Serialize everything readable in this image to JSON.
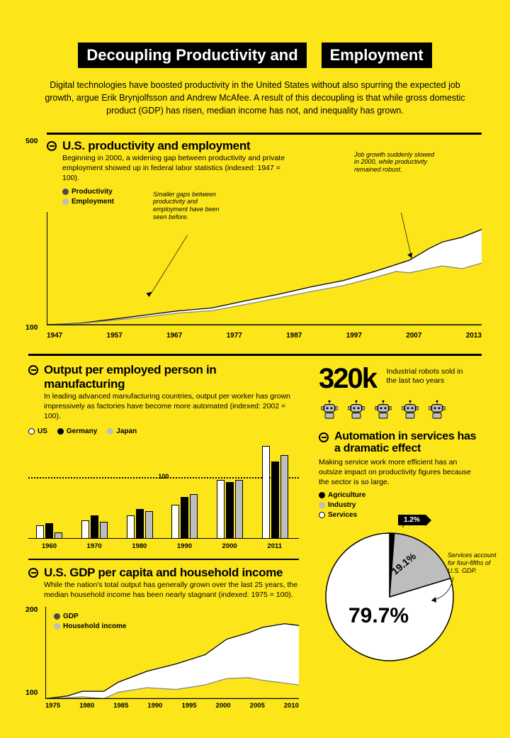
{
  "title_left": "Decoupling Productivity and",
  "title_right": "Employment",
  "intro": "Digital technologies have boosted productivity in the United States without also spurring the expected job growth, argue Erik Brynjolfsson and Andrew McAfee. A result of this decoupling is that while gross domestic product (GDP) has risen, median income has not, and inequality has grown.",
  "colors": {
    "bg": "#fce61a",
    "dark": "#000000",
    "grey": "#bdbdbd",
    "white": "#ffffff",
    "light_grey_fill": "#d9d9d9"
  },
  "chart1": {
    "title": "U.S. productivity and employment",
    "desc": "Beginning in 2000, a widening gap between productivity and private employment showed up in federal labor statistics (indexed: 1947 = 100).",
    "legend": [
      {
        "label": "Productivity",
        "color": "#4a4a4a"
      },
      {
        "label": "Employment",
        "color": "#bdbdbd"
      }
    ],
    "y_max_label": "500",
    "y_min_label": "100",
    "ylim": [
      100,
      500
    ],
    "x_labels": [
      "1947",
      "1957",
      "1967",
      "1977",
      "1987",
      "1997",
      "2007",
      "2013"
    ],
    "annot1": "Smaller gaps between productivity and employment have been seen before.",
    "annot2": "Job growth suddenly slowed in 2000, while productivity remained robust.",
    "prod_points": [
      [
        0,
        100
      ],
      [
        5,
        106
      ],
      [
        10,
        120
      ],
      [
        15,
        135
      ],
      [
        20,
        150
      ],
      [
        25,
        160
      ],
      [
        30,
        185
      ],
      [
        35,
        208
      ],
      [
        40,
        235
      ],
      [
        45,
        258
      ],
      [
        50,
        292
      ],
      [
        55,
        330
      ],
      [
        58,
        372
      ],
      [
        60,
        395
      ],
      [
        63,
        412
      ],
      [
        66,
        440
      ]
    ],
    "emp_points": [
      [
        0,
        100
      ],
      [
        5,
        105
      ],
      [
        10,
        116
      ],
      [
        15,
        128
      ],
      [
        20,
        142
      ],
      [
        25,
        150
      ],
      [
        30,
        172
      ],
      [
        35,
        195
      ],
      [
        40,
        218
      ],
      [
        45,
        240
      ],
      [
        50,
        270
      ],
      [
        53,
        290
      ],
      [
        55,
        285
      ],
      [
        58,
        300
      ],
      [
        60,
        310
      ],
      [
        63,
        300
      ],
      [
        66,
        320
      ]
    ]
  },
  "chart2": {
    "title": "Output per employed person in manufacturing",
    "desc": "In leading advanced manufacturing countries, output per worker has grown impressively as factories have become more automated (indexed: 2002 = 100).",
    "legend": [
      {
        "label": "US",
        "color": "#ffffff",
        "stroke": "#000"
      },
      {
        "label": "Germany",
        "color": "#000000"
      },
      {
        "label": "Japan",
        "color": "#bdbdbd"
      }
    ],
    "ref_line_value": 100,
    "ref_line_label": "100",
    "ymax": 160,
    "years": [
      "1960",
      "1970",
      "1980",
      "1990",
      "2000",
      "2011"
    ],
    "data": {
      "US": [
        22,
        30,
        38,
        55,
        95,
        150
      ],
      "Germany": [
        25,
        38,
        48,
        68,
        92,
        125
      ],
      "Japan": [
        10,
        28,
        45,
        72,
        95,
        135
      ]
    }
  },
  "chart3": {
    "title": "U.S. GDP per capita and household income",
    "desc": "While the nation's total output has generally grown over the last 25 years, the median household income has been nearly stagnant (indexed: 1975 = 100).",
    "legend": [
      {
        "label": "GDP",
        "color": "#4a4a4a"
      },
      {
        "label": "Household income",
        "color": "#bdbdbd"
      }
    ],
    "y_max_label": "200",
    "y_min_label": "100",
    "ylim": [
      100,
      200
    ],
    "x_labels": [
      "1975",
      "1980",
      "1985",
      "1990",
      "1995",
      "2000",
      "2005",
      "2010"
    ],
    "gdp_points": [
      [
        0,
        100
      ],
      [
        3,
        103
      ],
      [
        5,
        108
      ],
      [
        8,
        108
      ],
      [
        10,
        118
      ],
      [
        14,
        130
      ],
      [
        18,
        138
      ],
      [
        22,
        148
      ],
      [
        25,
        165
      ],
      [
        28,
        172
      ],
      [
        30,
        178
      ],
      [
        33,
        182
      ],
      [
        35,
        180
      ]
    ],
    "hh_points": [
      [
        0,
        100
      ],
      [
        3,
        101
      ],
      [
        5,
        102
      ],
      [
        8,
        100
      ],
      [
        10,
        107
      ],
      [
        14,
        112
      ],
      [
        18,
        110
      ],
      [
        22,
        115
      ],
      [
        25,
        122
      ],
      [
        28,
        123
      ],
      [
        30,
        120
      ],
      [
        33,
        117
      ],
      [
        35,
        115
      ]
    ]
  },
  "robots": {
    "big_number": "320k",
    "caption": "Industrial robots sold in the last two years",
    "count": 5
  },
  "automation": {
    "title": "Automation in services has a dramatic effect",
    "desc": "Making service work more efficient has an outsize impact on productivity figures because the sector is so large.",
    "legend": [
      {
        "label": "Agriculture",
        "color": "#000000"
      },
      {
        "label": "Industry",
        "color": "#bdbdbd"
      },
      {
        "label": "Services",
        "color": "#ffffff",
        "stroke": "#000"
      }
    ],
    "slices": {
      "agriculture": {
        "pct": 1.2,
        "label": "1.2%",
        "color": "#000000"
      },
      "industry": {
        "pct": 19.1,
        "label": "19.1%",
        "color": "#bdbdbd"
      },
      "services": {
        "pct": 79.7,
        "label": "79.7%",
        "color": "#ffffff"
      }
    },
    "annot": "Services account for four-fifths of U.S. GDP."
  }
}
